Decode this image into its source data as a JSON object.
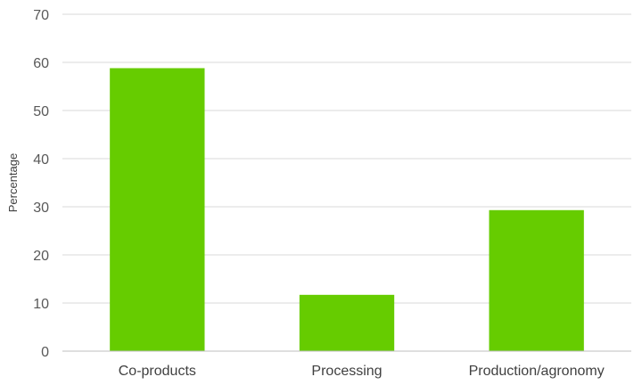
{
  "chart_data": {
    "type": "bar",
    "title": "",
    "xlabel": "",
    "ylabel": "Percentage",
    "categories": [
      "Co-products",
      "Processing",
      "Production/agronomy"
    ],
    "values": [
      58.8,
      11.7,
      29.3
    ],
    "ylim": [
      0,
      70
    ],
    "yticks": [
      0,
      10,
      20,
      30,
      40,
      50,
      60,
      70
    ],
    "grid": true,
    "legend": "none",
    "bar_color": "#66CC00",
    "grid_color": "#D9D9D9",
    "axis_color": "#BFBFBF"
  }
}
